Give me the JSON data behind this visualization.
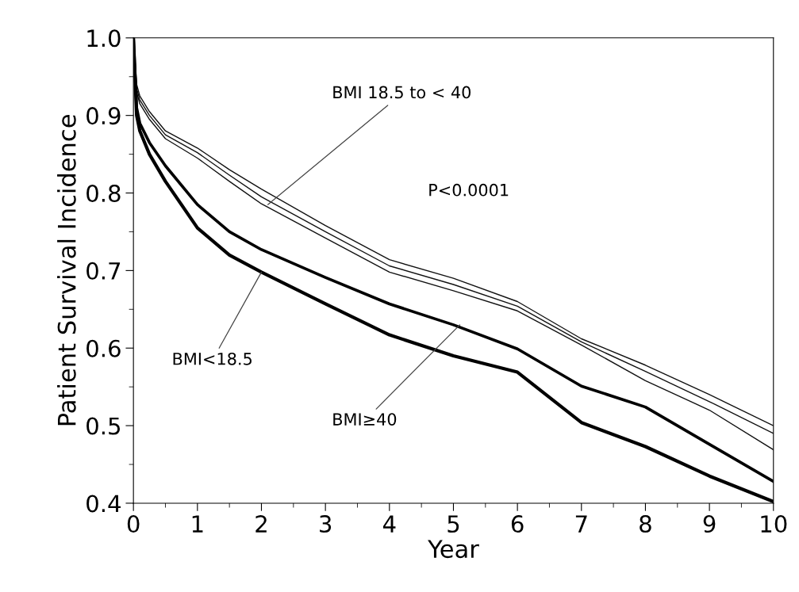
{
  "chart_data": {
    "type": "line",
    "xlabel": "Year",
    "ylabel": "Patient Survival Incidence",
    "x": [
      0,
      0.05,
      0.1,
      0.25,
      0.5,
      1,
      1.5,
      2,
      3,
      4,
      5,
      6,
      7,
      8,
      9,
      10
    ],
    "series": [
      {
        "color": "#111111",
        "values": [
          1.0,
          0.94,
          0.925,
          0.905,
          0.88,
          0.858,
          0.83,
          0.805,
          0.758,
          0.714,
          0.69,
          0.66,
          0.612,
          0.578,
          0.54,
          0.5
        ]
      },
      {
        "color": "#111111",
        "values": [
          1.0,
          0.935,
          0.92,
          0.9,
          0.875,
          0.852,
          0.823,
          0.795,
          0.75,
          0.706,
          0.682,
          0.654,
          0.608,
          0.57,
          0.531,
          0.49
        ]
      },
      {
        "color": "#111111",
        "values": [
          1.0,
          0.93,
          0.915,
          0.895,
          0.87,
          0.845,
          0.815,
          0.786,
          0.742,
          0.698,
          0.674,
          0.648,
          0.604,
          0.558,
          0.52,
          0.469
        ]
      },
      {
        "color": "#000000",
        "values": [
          1.0,
          0.91,
          0.89,
          0.865,
          0.835,
          0.785,
          0.75,
          0.727,
          0.691,
          0.657,
          0.63,
          0.599,
          0.551,
          0.524,
          0.476,
          0.428
        ]
      },
      {
        "color": "#000000",
        "values": [
          1.0,
          0.9,
          0.88,
          0.85,
          0.815,
          0.755,
          0.72,
          0.698,
          0.657,
          0.617,
          0.59,
          0.569,
          0.504,
          0.473,
          0.435,
          0.402
        ]
      }
    ],
    "annotations": [
      {
        "text": "BMI 18.5 to < 40",
        "x": 2.1,
        "y": 0.785
      },
      {
        "text": "BMI<18.5",
        "x": 2.0,
        "y": 0.698
      },
      {
        "text": "BMI≥40",
        "x": 5.1,
        "y": 0.63
      },
      "P<0.0001"
    ],
    "xlim": [
      0,
      10
    ],
    "ylim": [
      0.4,
      1.0
    ],
    "xticks": [
      0,
      1,
      2,
      3,
      4,
      5,
      6,
      7,
      8,
      9,
      10
    ],
    "yticks": [
      {
        "value": 0.4,
        "label": "0.4"
      },
      {
        "value": 0.5,
        "label": "0.5"
      },
      {
        "value": 0.6,
        "label": "0.6"
      },
      {
        "value": 0.7,
        "label": "0.7"
      },
      {
        "value": 0.8,
        "label": "0.8"
      },
      {
        "value": 0.9,
        "label": "0.9"
      },
      {
        "value": 1.0,
        "label": "1.0"
      }
    ],
    "grid": false,
    "legend": false
  }
}
